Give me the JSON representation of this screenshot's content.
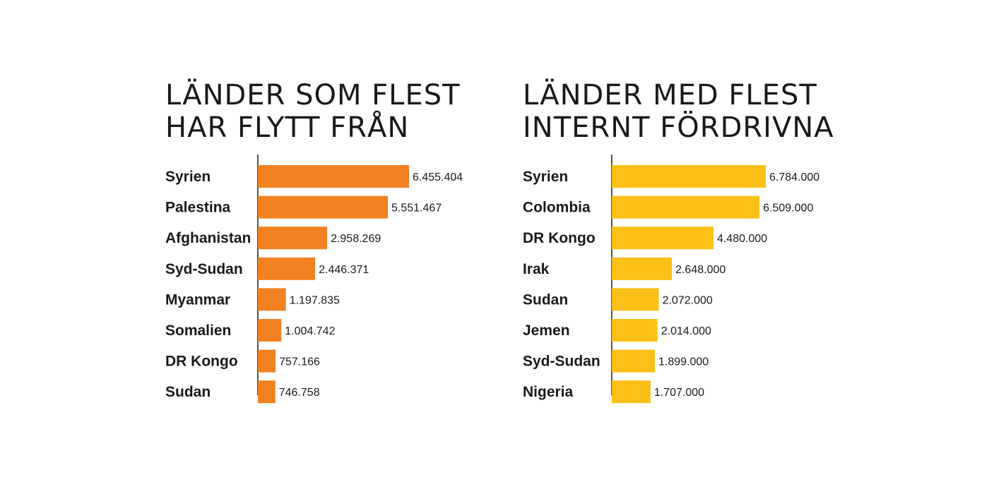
{
  "chart_data": [
    {
      "type": "bar",
      "orientation": "horizontal",
      "title_lines": [
        "LÄNDER SOM FLEST",
        "HAR FLYTT FRÅN"
      ],
      "categories": [
        "Syrien",
        "Palestina",
        "Afghanistan",
        "Syd-Sudan",
        "Myanmar",
        "Somalien",
        "DR Kongo",
        "Sudan"
      ],
      "values": [
        6455404,
        5551467,
        2958269,
        2446371,
        1197835,
        1004742,
        757166,
        746758
      ],
      "value_labels": [
        "6.455.404",
        "5.551.467",
        "2.958.269",
        "2.446.371",
        "1.197.835",
        "1.004.742",
        "757.166",
        "746.758"
      ],
      "bar_color": "#f28121",
      "grid": false,
      "legend": "none"
    },
    {
      "type": "bar",
      "orientation": "horizontal",
      "title_lines": [
        "LÄNDER MED FLEST",
        "INTERNT FÖRDRIVNA"
      ],
      "categories": [
        "Syrien",
        "Colombia",
        "DR Kongo",
        "Irak",
        "Sudan",
        "Jemen",
        "Syd-Sudan",
        "Nigeria"
      ],
      "values": [
        6784000,
        6509000,
        4480000,
        2648000,
        2072000,
        2014000,
        1899000,
        1707000
      ],
      "value_labels": [
        "6.784.000",
        "6.509.000",
        "4.480.000",
        "2.648.000",
        "2.072.000",
        "2.014.000",
        "1.899.000",
        "1.707.000"
      ],
      "bar_color": "#fbbf17",
      "grid": false,
      "legend": "none"
    }
  ]
}
